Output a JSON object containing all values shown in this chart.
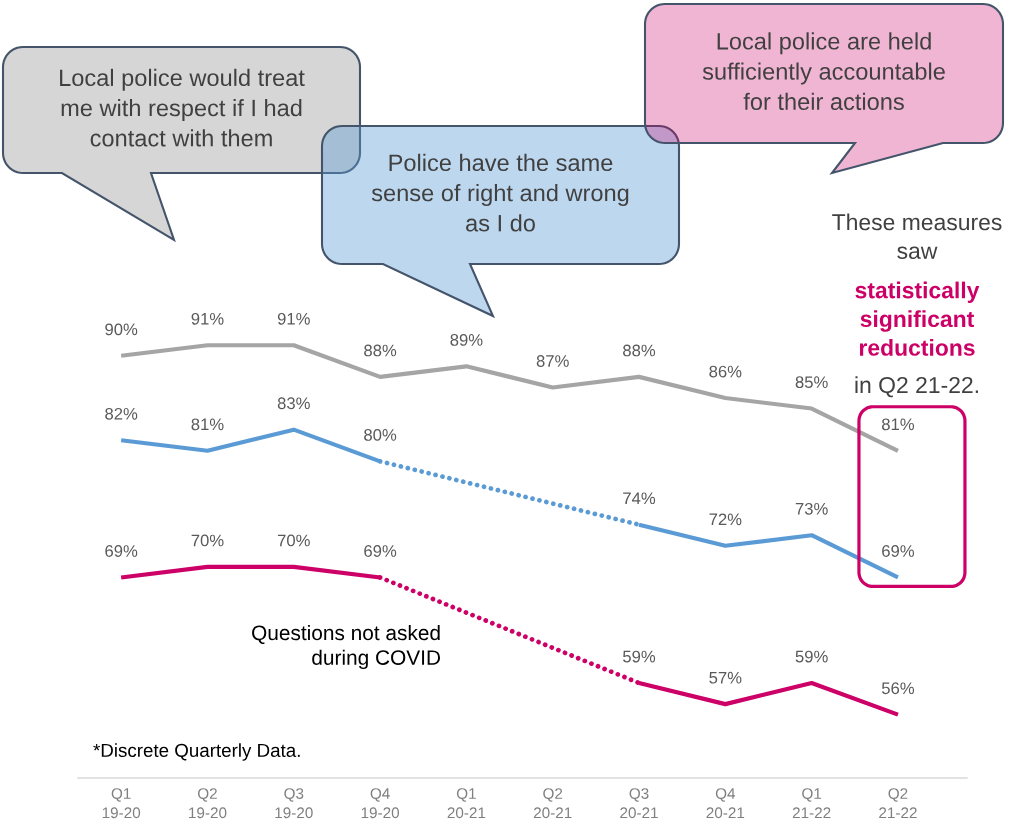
{
  "chart_data": {
    "type": "line",
    "categories": [
      "Q1 19-20",
      "Q2 19-20",
      "Q3 19-20",
      "Q4 19-20",
      "Q1 20-21",
      "Q2 20-21",
      "Q3 20-21",
      "Q4 20-21",
      "Q1 21-22",
      "Q2 21-22"
    ],
    "series": [
      {
        "color": "#a5a5a5",
        "values": [
          90,
          91,
          91,
          88,
          89,
          87,
          88,
          86,
          85,
          81
        ],
        "value_labels": [
          "90%",
          "91%",
          "91%",
          "88%",
          "89%",
          "87%",
          "88%",
          "86%",
          "85%",
          "81%"
        ]
      },
      {
        "color": "#5b9bd5",
        "values": [
          82,
          81,
          83,
          80,
          null,
          null,
          null,
          null,
          null,
          null
        ],
        "value_labels": [
          "82%",
          "81%",
          "83%",
          null,
          null,
          null,
          null,
          null,
          null,
          null
        ]
      },
      {
        "color": "#5b9bd5",
        "x": [
          "Q4 19-20",
          "Q3 20-21"
        ],
        "values": [
          80,
          74
        ],
        "value_labels": [
          "80%",
          "74%"
        ],
        "line_style": "dotted"
      },
      {
        "color": "#5b9bd5",
        "values": [
          null,
          null,
          null,
          null,
          null,
          null,
          74,
          72,
          73,
          69
        ],
        "value_labels": [
          null,
          null,
          null,
          null,
          null,
          null,
          null,
          "72%",
          "73%",
          "69%"
        ]
      },
      {
        "color": "#cc0066",
        "values": [
          69,
          70,
          70,
          69,
          null,
          null,
          null,
          null,
          null,
          null
        ],
        "value_labels": [
          "69%",
          "70%",
          "70%",
          null,
          null,
          null,
          null,
          null,
          null,
          null
        ]
      },
      {
        "color": "#cc0066",
        "x": [
          "Q4 19-20",
          "Q3 20-21"
        ],
        "values": [
          69,
          59
        ],
        "value_labels": [
          "69%",
          "59%"
        ],
        "line_style": "dotted"
      },
      {
        "color": "#cc0066",
        "values": [
          null,
          null,
          null,
          null,
          null,
          null,
          59,
          57,
          59,
          56
        ],
        "value_labels": [
          null,
          null,
          null,
          null,
          null,
          null,
          null,
          "57%",
          "59%",
          "56%"
        ]
      }
    ],
    "tick_labels": "x",
    "line_style": "solid",
    "annotations": [
      "Local police would treat me with respect if I had contact with them",
      "Police have the same sense of right and wrong as I do",
      "Local police are held sufficiently accountable for their actions",
      "These measures saw",
      "statistically significant reductions",
      "in Q2 21-22.",
      "Questions not asked during COVID",
      "*Discrete Quarterly Data."
    ]
  }
}
